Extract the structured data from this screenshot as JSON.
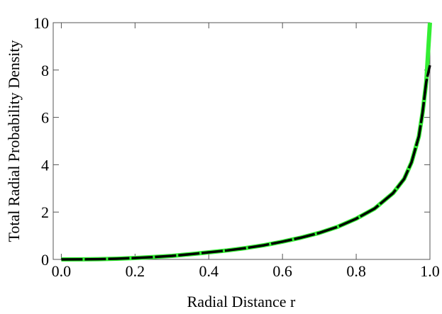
{
  "chart_data": {
    "type": "line",
    "xlabel": "Radial  Distance  r",
    "ylabel": "Total  Radial  Probability  Density",
    "x": [
      0,
      0.05,
      0.1,
      0.15,
      0.2,
      0.25,
      0.3,
      0.35,
      0.4,
      0.45,
      0.5,
      0.55,
      0.6,
      0.65,
      0.7,
      0.75,
      0.8,
      0.85,
      0.9,
      0.93,
      0.95,
      0.97,
      0.98,
      0.99,
      1.0
    ],
    "series": [
      {
        "color": "#33ee33",
        "values": [
          0,
          0.003,
          0.01,
          0.03,
          0.06,
          0.1,
          0.15,
          0.22,
          0.3,
          0.38,
          0.48,
          0.6,
          0.75,
          0.92,
          1.12,
          1.38,
          1.72,
          2.15,
          2.8,
          3.4,
          4.1,
          5.2,
          6.2,
          7.5,
          10
        ]
      },
      {
        "color": "#000000",
        "values": [
          0,
          0.003,
          0.01,
          0.03,
          0.06,
          0.1,
          0.15,
          0.22,
          0.3,
          0.38,
          0.48,
          0.6,
          0.75,
          0.92,
          1.12,
          1.38,
          1.72,
          2.15,
          2.8,
          3.4,
          4.1,
          5.2,
          6.2,
          7.5,
          8.2
        ]
      }
    ],
    "xlim": [
      -0.022,
      1.0
    ],
    "ylim": [
      0,
      10
    ],
    "xticks": [
      {
        "value": 0,
        "label": "0.0"
      },
      0.2,
      0.4,
      0.6,
      0.8,
      {
        "value": 1,
        "label": "1.0"
      }
    ],
    "yticks": [
      0,
      2,
      4,
      6,
      8,
      10
    ]
  }
}
